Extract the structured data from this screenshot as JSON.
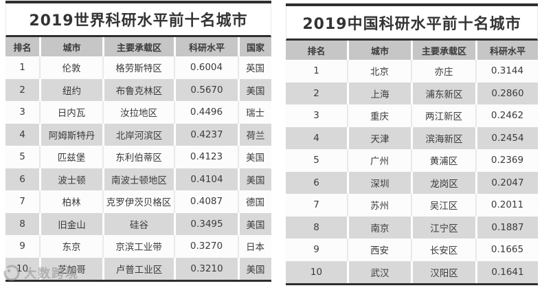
{
  "chart_data": [
    {
      "type": "table",
      "title": "2019世界科研水平前十名城市",
      "columns": [
        "排名",
        "城市",
        "主要承载区",
        "科研水平",
        "国家"
      ],
      "rows": [
        [
          "1",
          "伦敦",
          "格劳斯特区",
          "0.6004",
          "英国"
        ],
        [
          "2",
          "纽约",
          "布鲁克林区",
          "0.5670",
          "美国"
        ],
        [
          "3",
          "日内瓦",
          "汝拉地区",
          "0.4496",
          "瑞士"
        ],
        [
          "4",
          "阿姆斯特丹",
          "北岸河滨区",
          "0.4237",
          "荷兰"
        ],
        [
          "5",
          "匹兹堡",
          "东利伯蒂区",
          "0.4123",
          "美国"
        ],
        [
          "6",
          "波士顿",
          "南波士顿地区",
          "0.4104",
          "美国"
        ],
        [
          "7",
          "柏林",
          "克罗伊茨贝格区",
          "0.4087",
          "德国"
        ],
        [
          "8",
          "旧金山",
          "硅谷",
          "0.3495",
          "美国"
        ],
        [
          "9",
          "东京",
          "京滨工业带",
          "0.3270",
          "日本"
        ],
        [
          "10",
          "芝加哥",
          "卢普工业区",
          "0.3210",
          "美国"
        ]
      ]
    },
    {
      "type": "table",
      "title": "2019中国科研水平前十名城市",
      "columns": [
        "排名",
        "城市",
        "主要承载区",
        "科研水平"
      ],
      "rows": [
        [
          "1",
          "北京",
          "亦庄",
          "0.3144"
        ],
        [
          "2",
          "上海",
          "浦东新区",
          "0.2860"
        ],
        [
          "3",
          "重庆",
          "两江新区",
          "0.2462"
        ],
        [
          "4",
          "天津",
          "滨海新区",
          "0.2454"
        ],
        [
          "5",
          "广州",
          "黄浦区",
          "0.2369"
        ],
        [
          "6",
          "深圳",
          "龙岗区",
          "0.2047"
        ],
        [
          "7",
          "苏州",
          "吴江区",
          "0.2011"
        ],
        [
          "8",
          "南京",
          "江宁区",
          "0.1887"
        ],
        [
          "9",
          "西安",
          "长安区",
          "0.1665"
        ],
        [
          "10",
          "武汉",
          "汉阳区",
          "0.1641"
        ]
      ]
    }
  ],
  "watermark": {
    "text": "大数跨境"
  },
  "colors": {
    "rule": "#2e2e2e",
    "header_bg": "#c6c6c6",
    "row_even_bg": "#d8d8d8",
    "row_odd_bg": "#fcfcfc",
    "cell_text": "#3a3a3a",
    "title_text": "#333333",
    "sep_light": "#e9e9e9",
    "watermark": "#8f8f8f"
  }
}
